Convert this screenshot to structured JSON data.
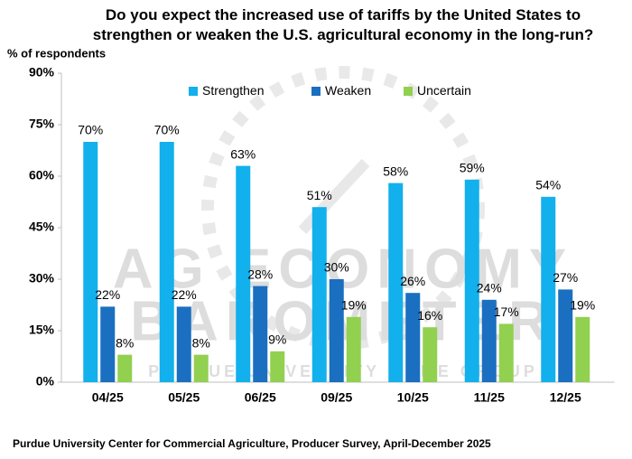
{
  "chart_data": {
    "type": "bar",
    "title": "Do you expect the increased use of tariffs by the United States to strengthen or weaken the U.S. agricultural economy in the long-run?",
    "y_label": "% of respondents",
    "source": "Purdue University Center for Commercial Agriculture, Producer Survey, April-December 2025",
    "watermark": [
      "AG ECONOMY",
      "BAROMETER",
      "PURDUE UNIVERSITY - CME GROUP"
    ],
    "categories": [
      "04/25",
      "05/25",
      "06/25",
      "09/25",
      "10/25",
      "11/25",
      "12/25"
    ],
    "series": [
      {
        "name": "Strengthen",
        "color": "#12b0ec",
        "values": [
          70,
          70,
          63,
          51,
          58,
          59,
          54
        ],
        "value_labels": [
          "70%",
          "70%",
          "63%",
          "51%",
          "58%",
          "59%",
          "54%"
        ]
      },
      {
        "name": "Weaken",
        "color": "#1a6fc0",
        "values": [
          22,
          22,
          28,
          30,
          26,
          24,
          27
        ],
        "value_labels": [
          "22%",
          "22%",
          "28%",
          "30%",
          "26%",
          "24%",
          "27%"
        ]
      },
      {
        "name": "Uncertain",
        "color": "#92d050",
        "values": [
          8,
          8,
          9,
          19,
          16,
          17,
          19
        ],
        "value_labels": [
          "8%",
          "8%",
          "9%",
          "19%",
          "16%",
          "17%",
          "19%"
        ]
      }
    ],
    "ylim": [
      0,
      90
    ],
    "yticks": [
      {
        "value": 0,
        "label": "0%"
      },
      {
        "value": 15,
        "label": "15%"
      },
      {
        "value": 30,
        "label": "30%"
      },
      {
        "value": 45,
        "label": "45%"
      },
      {
        "value": 60,
        "label": "60%"
      },
      {
        "value": 75,
        "label": "75%"
      },
      {
        "value": 90,
        "label": "90%"
      }
    ],
    "grid": false,
    "legend": "top"
  }
}
